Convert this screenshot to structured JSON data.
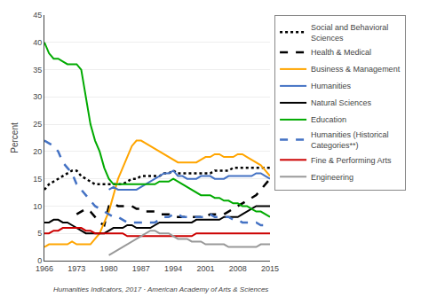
{
  "chart_data": {
    "type": "line",
    "y_label": "Percent",
    "x": [
      1966,
      1967,
      1968,
      1969,
      1970,
      1971,
      1972,
      1973,
      1974,
      1975,
      1976,
      1977,
      1978,
      1979,
      1980,
      1981,
      1982,
      1983,
      1984,
      1985,
      1986,
      1987,
      1988,
      1989,
      1990,
      1991,
      1992,
      1993,
      1994,
      1995,
      1996,
      1997,
      1998,
      1999,
      2000,
      2001,
      2002,
      2003,
      2004,
      2005,
      2006,
      2007,
      2008,
      2009,
      2010,
      2011,
      2012,
      2013,
      2014,
      2015
    ],
    "series": [
      {
        "name": "Social and Behavioral\nSciences",
        "color": "#000000",
        "line_style": "dotted",
        "values": [
          13,
          14,
          14.5,
          15,
          15.5,
          16,
          16.5,
          16.5,
          15.5,
          15,
          14.5,
          14,
          14,
          14,
          14,
          14,
          14,
          14,
          14.5,
          15,
          15,
          15.5,
          15.5,
          15.5,
          15.5,
          15.5,
          16,
          16,
          16.5,
          16,
          16,
          16,
          16,
          16,
          16,
          16,
          16,
          16.5,
          16.5,
          16.5,
          16.5,
          17,
          17,
          17,
          17,
          17,
          17,
          17,
          17,
          17
        ]
      },
      {
        "name": "Health & Medical",
        "color": "#000000",
        "line_style": "dashed",
        "values": [
          null,
          null,
          null,
          null,
          null,
          null,
          null,
          8.5,
          9,
          9.5,
          9,
          8,
          7,
          6.5,
          10,
          10.5,
          10,
          10,
          10,
          10,
          9.5,
          9.5,
          9,
          9,
          9,
          8.5,
          8.5,
          8.5,
          8,
          8,
          8,
          8,
          8,
          8,
          8,
          8,
          8.5,
          8.5,
          8.5,
          8.5,
          9,
          9.5,
          10,
          10.5,
          11,
          11.5,
          12,
          13,
          14,
          15
        ]
      },
      {
        "name": "Business & Management",
        "color": "#FFA500",
        "line_style": "solid",
        "values": [
          2.5,
          3,
          3,
          3,
          3,
          3,
          3.5,
          3,
          3,
          3,
          3,
          4,
          5,
          7,
          9,
          12,
          15,
          17,
          19,
          21,
          22,
          22,
          21.5,
          21,
          20.5,
          20,
          19.5,
          19,
          18.5,
          18,
          18,
          18,
          18,
          18,
          18.5,
          19,
          19,
          19.5,
          19.5,
          19,
          19,
          19,
          19.5,
          19.5,
          19,
          18.5,
          18,
          17.5,
          16.5,
          15.5
        ]
      },
      {
        "name": "Humanities",
        "color": "#4472C4",
        "line_style": "solid",
        "values": [
          null,
          null,
          null,
          null,
          null,
          null,
          null,
          null,
          null,
          null,
          null,
          null,
          null,
          null,
          13,
          13.5,
          13,
          13,
          13,
          13,
          13,
          13.5,
          14,
          14.5,
          15,
          15.5,
          16,
          16,
          16.5,
          15.5,
          15.5,
          15,
          15,
          15,
          15.5,
          15.5,
          15.5,
          15,
          15,
          15,
          15.5,
          15.5,
          15.5,
          15.5,
          15.5,
          15.5,
          16,
          16,
          15.5,
          15
        ]
      },
      {
        "name": "Natural Sciences",
        "color": "#000000",
        "line_style": "solid",
        "values": [
          7,
          7,
          7.5,
          7.5,
          7,
          7,
          6.5,
          6,
          5.5,
          5,
          5,
          5,
          5,
          5,
          5.5,
          6,
          6,
          6,
          6.5,
          6.5,
          6,
          6,
          6,
          6,
          6.5,
          7,
          7,
          7,
          7,
          7,
          7,
          7,
          7,
          7.5,
          7.5,
          7.5,
          7.5,
          7.5,
          7.5,
          8,
          8,
          8,
          8,
          8.5,
          9,
          9.5,
          10,
          10,
          10,
          10
        ]
      },
      {
        "name": "Education",
        "color": "#00AA00",
        "line_style": "solid",
        "values": [
          40,
          38,
          37,
          37,
          36.5,
          36,
          36,
          36,
          35,
          30,
          25,
          22,
          20,
          17,
          15,
          14,
          14,
          14,
          14,
          14,
          14,
          14,
          14,
          14,
          14,
          14.5,
          14.5,
          14.5,
          15,
          14.5,
          14,
          13.5,
          13,
          12.5,
          12,
          12,
          12,
          11.5,
          11.5,
          11,
          11,
          10.5,
          10.5,
          10,
          10,
          9.5,
          9,
          9,
          8.5,
          8
        ]
      },
      {
        "name": "Humanities (Historical\nCategories**)",
        "color": "#4472C4",
        "line_style": "dashed",
        "values": [
          22,
          21.5,
          21,
          20,
          18,
          17,
          16,
          14,
          13,
          12,
          11,
          10,
          9.5,
          9,
          8.5,
          8,
          8,
          7.5,
          7,
          7,
          7,
          7,
          7,
          7,
          7,
          7.5,
          8,
          8,
          8.5,
          8.5,
          8,
          8,
          8,
          8,
          8,
          8,
          8.5,
          8,
          8,
          8,
          8,
          7.5,
          7.5,
          7,
          7,
          7,
          7,
          6.5,
          6.5,
          6
        ]
      },
      {
        "name": "Fine & Performing Arts",
        "color": "#CC0000",
        "line_style": "solid",
        "values": [
          5,
          5,
          5.5,
          5.5,
          6,
          6,
          6,
          6,
          6,
          5.5,
          5.5,
          5,
          5,
          5,
          5,
          5,
          5,
          5,
          4.5,
          4.5,
          4.5,
          4.5,
          4.5,
          4.5,
          4.5,
          4.5,
          4.5,
          4.5,
          4.5,
          4.5,
          4.5,
          4.5,
          4.5,
          5,
          5,
          5,
          5,
          5,
          5,
          5,
          5,
          5,
          5,
          5,
          5,
          5,
          5,
          5,
          5,
          5
        ]
      },
      {
        "name": "Engineering",
        "color": "#999999",
        "line_style": "solid",
        "values": [
          null,
          null,
          null,
          null,
          null,
          null,
          null,
          null,
          null,
          null,
          null,
          null,
          null,
          null,
          1,
          1.5,
          2,
          2.5,
          3,
          3.5,
          4,
          4.5,
          5,
          5.5,
          5.5,
          5,
          5,
          5,
          4.5,
          4,
          4,
          4,
          3.5,
          3.5,
          3.5,
          3,
          3,
          3,
          3,
          3,
          2.5,
          2.5,
          2.5,
          2.5,
          2.5,
          2.5,
          2.5,
          3,
          3,
          3
        ]
      }
    ],
    "xlim": [
      1966,
      2015
    ],
    "xticks": [
      1966,
      1973,
      1980,
      1987,
      1994,
      2001,
      2008,
      2015
    ],
    "ylim": [
      0,
      45
    ],
    "yticks": [
      0,
      5,
      10,
      15,
      20,
      25,
      30,
      35,
      40,
      45
    ],
    "grid": "y",
    "legend": "right",
    "annotations": [
      "Humanities Indicators, 2017 · American Academy of Arts & Sciences"
    ]
  }
}
